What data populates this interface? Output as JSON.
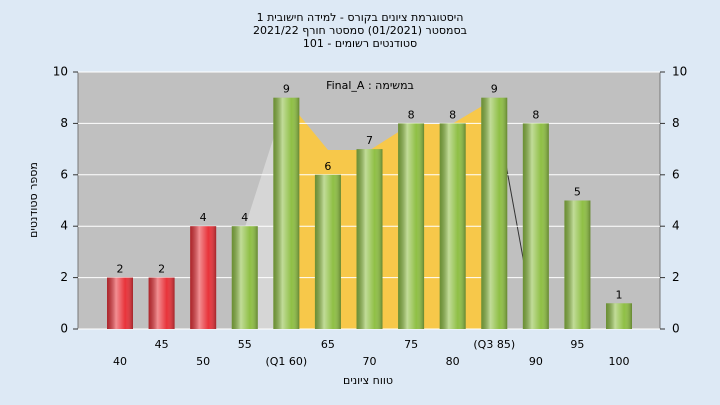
{
  "chart_data": {
    "type": "bar",
    "title": [
      "היסטוגרמת ציונים בקורס - למידה חישובית 1",
      "בסמסטר (01/2021) סמסטר חורף 2021/22",
      "סטודנטים רשומים - 101"
    ],
    "annotation": "Final_A : במשימה",
    "x_label": "טווח ציונים",
    "y_label": "מספר סטודנטים",
    "categories": [
      "40",
      "45",
      "50",
      "55",
      "(Q1 60)",
      "65",
      "70",
      "75",
      "80",
      "(Q3 85)",
      "90",
      "95",
      "100"
    ],
    "values": [
      2,
      2,
      4,
      4,
      9,
      6,
      7,
      8,
      8,
      9,
      8,
      5,
      1
    ],
    "colors": [
      "#e8333a",
      "#e8333a",
      "#e8333a",
      "#8fbf45",
      "#8fbf45",
      "#8fbf45",
      "#8fbf45",
      "#8fbf45",
      "#8fbf45",
      "#8fbf45",
      "#8fbf45",
      "#8fbf45",
      "#8fbf45"
    ],
    "ylim": [
      0,
      10
    ],
    "yticks": [
      0,
      2,
      4,
      6,
      8,
      10
    ],
    "y2lim": [
      0,
      10
    ],
    "y2ticks": [
      0,
      2,
      4,
      6,
      8,
      10
    ],
    "grid": true
  }
}
